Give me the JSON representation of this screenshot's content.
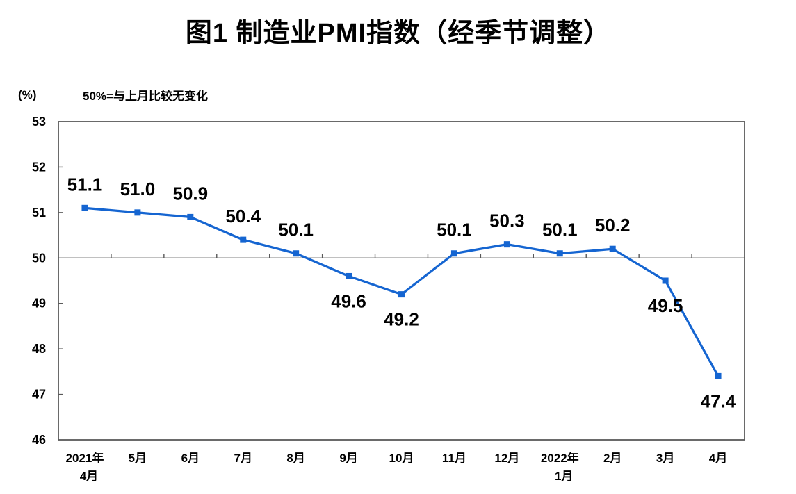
{
  "chart_data": {
    "type": "line",
    "title": "图1 制造业PMI指数（经季节调整）",
    "ylabel": "(%)",
    "xlabel": "",
    "annotation": "50%=与上月比较无变化",
    "categories": [
      "2021年\n4月",
      "5月",
      "6月",
      "7月",
      "8月",
      "9月",
      "10月",
      "11月",
      "12月",
      "2022年\n1月",
      "2月",
      "3月",
      "4月"
    ],
    "series": [
      {
        "name": "制造业PMI指数",
        "values": [
          51.1,
          51.0,
          50.9,
          50.4,
          50.1,
          49.6,
          49.2,
          50.1,
          50.3,
          50.1,
          50.2,
          49.5,
          47.4
        ],
        "labels": [
          "51.1",
          "51.0",
          "50.9",
          "50.4",
          "50.1",
          "49.6",
          "49.2",
          "50.1",
          "50.3",
          "50.1",
          "50.2",
          "49.5",
          "47.4"
        ],
        "label_positions": [
          "above",
          "above",
          "above",
          "above",
          "above",
          "below",
          "below",
          "above",
          "above",
          "above",
          "above",
          "below",
          "below"
        ]
      }
    ],
    "ylim": [
      46,
      53
    ],
    "yticks": [
      46,
      47,
      48,
      49,
      50,
      51,
      52,
      53
    ],
    "reference_line": 50,
    "grid": false,
    "legend": "none",
    "colors": {
      "line": "#1565D1",
      "marker": "#1565D1",
      "axis": "#595959",
      "text": "#000000"
    }
  }
}
